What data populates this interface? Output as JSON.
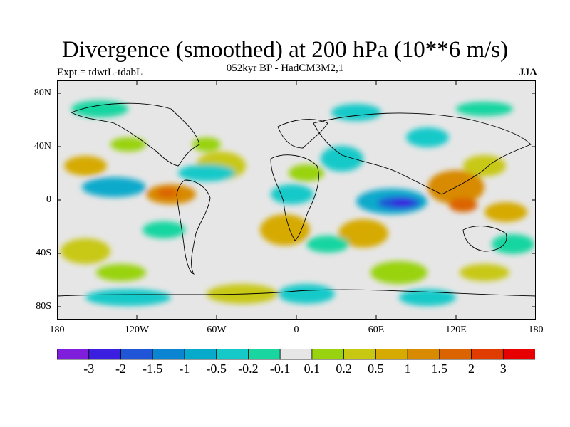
{
  "title": "Divergence (smoothed) at 200 hPa (10**6 m/s)",
  "subtitle": "052kyr BP - HadCM3M2,1",
  "experiment": "Expt = tdwtL-tdabL",
  "season": "JJA",
  "lat_labels": [
    "80N",
    "40N",
    "0",
    "40S",
    "80S"
  ],
  "lon_labels": [
    "180",
    "120W",
    "60W",
    "0",
    "60E",
    "120E",
    "180"
  ],
  "colorbar": {
    "labels": [
      "-3",
      "-2",
      "-1.5",
      "-1",
      "-0.5",
      "-0.2",
      "-0.1",
      "0.1",
      "0.2",
      "0.5",
      "1",
      "1.5",
      "2",
      "3"
    ],
    "colors": [
      "#7f1fdb",
      "#3a1fe0",
      "#1f55d6",
      "#0b84d2",
      "#08aacc",
      "#16c9c9",
      "#19d6a0",
      "#e6e6e6",
      "#99d30f",
      "#c8c812",
      "#d6aa00",
      "#d88a00",
      "#dc6400",
      "#e03c00",
      "#e60000"
    ]
  }
}
